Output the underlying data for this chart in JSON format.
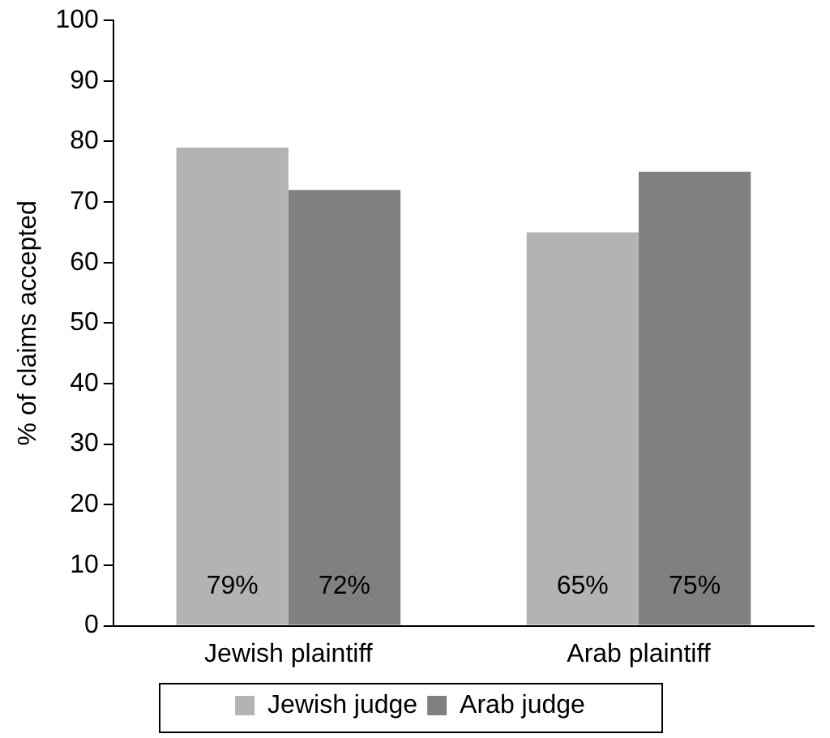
{
  "chart_data": {
    "type": "bar",
    "ylabel": "% of claims accepted",
    "categories": [
      "Jewish plaintiff",
      "Arab plaintiff"
    ],
    "series": [
      {
        "name": "Jewish judge",
        "color": "#b3b3b3",
        "values": [
          79,
          65
        ],
        "value_labels": [
          "79%",
          "65%"
        ]
      },
      {
        "name": "Arab judge",
        "color": "#808080",
        "values": [
          72,
          75
        ],
        "value_labels": [
          "72%",
          "75%"
        ]
      }
    ],
    "ylim": [
      0,
      100
    ],
    "yticks": [
      0,
      10,
      20,
      30,
      40,
      50,
      60,
      70,
      80,
      90,
      100
    ],
    "grid": false,
    "legend": "bottom"
  }
}
